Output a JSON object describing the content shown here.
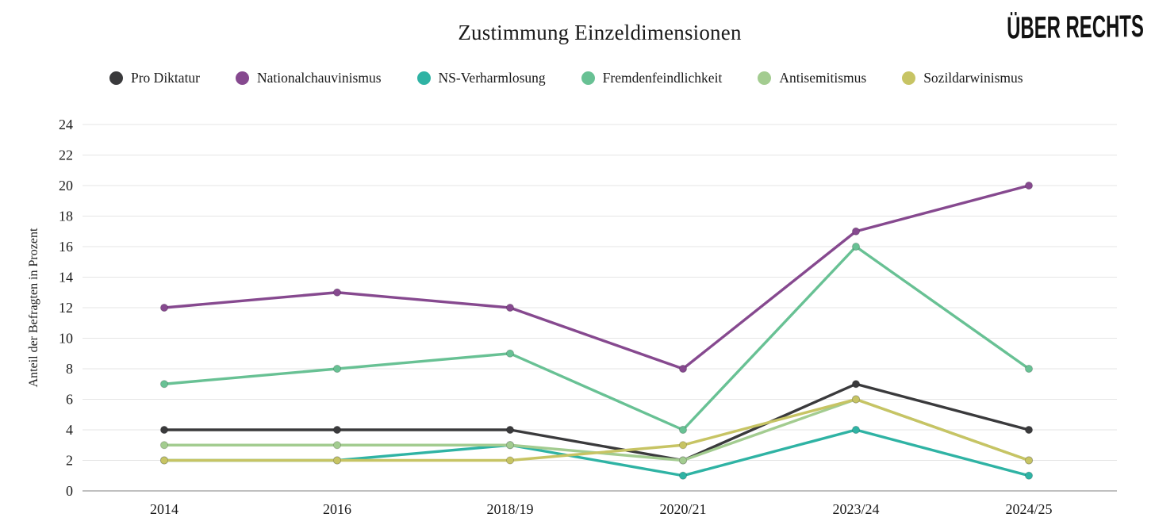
{
  "logo": "ÜBER RECHTS",
  "colors": {
    "background": "#ffffff",
    "grid": "#e5e5e5",
    "zero_axis": "#9a9a9a",
    "text": "#1a1a1a"
  },
  "chart_data": {
    "type": "line",
    "title": "Zustimmung Einzeldimensionen",
    "xlabel": "",
    "ylabel": "Anteil der Befragten in Prozent",
    "categories": [
      "2014",
      "2016",
      "2018/19",
      "2020/21",
      "2023/24",
      "2024/25"
    ],
    "ylim": [
      0,
      24
    ],
    "ytick_step": 2,
    "grid": true,
    "legend_position": "top",
    "series": [
      {
        "name": "Pro Diktatur",
        "color": "#3a3a3c",
        "values": [
          4,
          4,
          4,
          2,
          7,
          4
        ]
      },
      {
        "name": "Nationalchauvinismus",
        "color": "#86498f",
        "values": [
          12,
          13,
          12,
          8,
          17,
          20
        ]
      },
      {
        "name": "NS-Verharmlosung",
        "color": "#2fb3a4",
        "values": [
          2,
          2,
          3,
          1,
          4,
          1
        ]
      },
      {
        "name": "Fremdenfeindlichkeit",
        "color": "#68c194",
        "values": [
          7,
          8,
          9,
          4,
          16,
          8
        ]
      },
      {
        "name": "Antisemitismus",
        "color": "#a3cc90",
        "values": [
          3,
          3,
          3,
          2,
          6,
          2
        ]
      },
      {
        "name": "Sozildarwinismus",
        "color": "#c7c464",
        "values": [
          2,
          2,
          2,
          3,
          6,
          2
        ]
      }
    ]
  }
}
